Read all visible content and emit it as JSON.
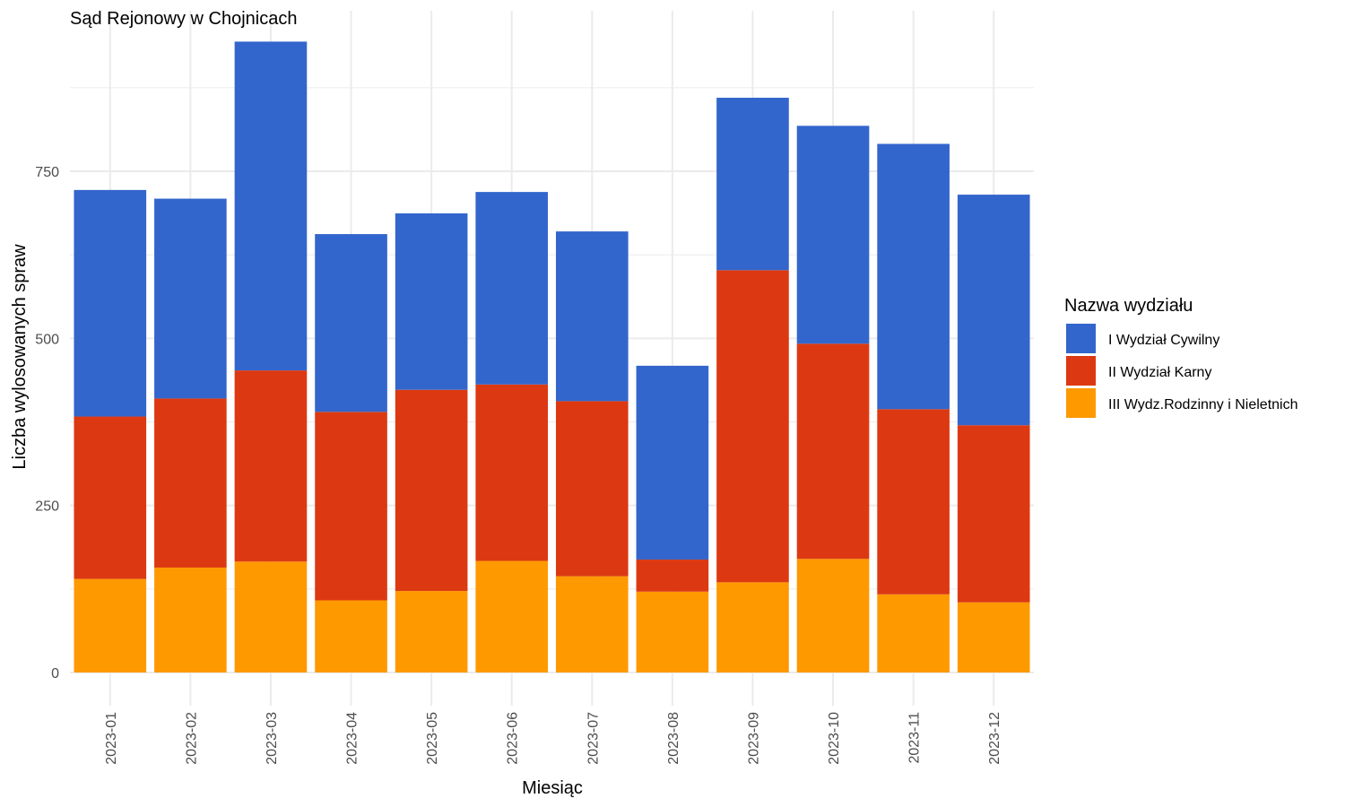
{
  "chart_data": {
    "type": "bar",
    "stacked": true,
    "title": "Sąd Rejonowy w Chojnicach",
    "xlabel": "Miesiąc",
    "ylabel": "Liczba wylosowanych spraw",
    "categories": [
      "2023-01",
      "2023-02",
      "2023-03",
      "2023-04",
      "2023-05",
      "2023-06",
      "2023-07",
      "2023-08",
      "2023-09",
      "2023-10",
      "2023-11",
      "2023-12"
    ],
    "series": [
      {
        "name": "III Wydz.Rodzinny i Nieletnich",
        "color": "#FF9900",
        "values": [
          140,
          157,
          166,
          108,
          122,
          167,
          144,
          121,
          135,
          170,
          117,
          105
        ]
      },
      {
        "name": "II Wydział Karny",
        "color": "#DC3912",
        "values": [
          243,
          253,
          286,
          282,
          301,
          264,
          262,
          48,
          467,
          322,
          277,
          265
        ]
      },
      {
        "name": "I Wydział Cywilny",
        "color": "#3366CC",
        "values": [
          339,
          299,
          492,
          266,
          264,
          288,
          254,
          290,
          258,
          326,
          397,
          345
        ]
      }
    ],
    "ylim": [
      0,
      950
    ],
    "yticks": [
      0,
      250,
      500,
      750
    ],
    "grid": true,
    "legend": {
      "title": "Nazwa wydziału",
      "position": "right",
      "order": [
        "I Wydział Cywilny",
        "II Wydział Karny",
        "III Wydz.Rodzinny i Nieletnich"
      ]
    }
  }
}
